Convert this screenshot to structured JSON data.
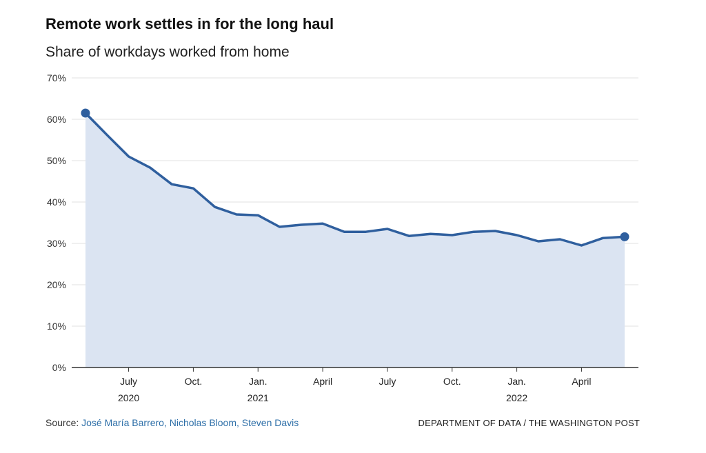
{
  "header": {
    "title": "Remote work settles in for the long haul",
    "subtitle": "Share of workdays worked from home"
  },
  "footer": {
    "source_label": "Source:",
    "source_authors": "José María Barrero, Nicholas Bloom, Steven Davis",
    "credit": "DEPARTMENT OF DATA / THE WASHINGTON POST"
  },
  "colors": {
    "line": "#2f5f9e",
    "fill": "#dbe4f2",
    "grid": "#e2e2e2",
    "axis": "#333333"
  },
  "chart_data": {
    "type": "area",
    "title": "Remote work settles in for the long haul",
    "subtitle": "Share of workdays worked from home",
    "x": [
      "2020-05",
      "2020-06",
      "2020-07",
      "2020-08",
      "2020-09",
      "2020-10",
      "2020-11",
      "2020-12",
      "2021-01",
      "2021-02",
      "2021-03",
      "2021-04",
      "2021-05",
      "2021-06",
      "2021-07",
      "2021-08",
      "2021-09",
      "2021-10",
      "2021-11",
      "2021-12",
      "2022-01",
      "2022-02",
      "2022-03",
      "2022-04",
      "2022-05",
      "2022-06"
    ],
    "series": [
      {
        "values": [
          61.5,
          56.2,
          51.0,
          48.3,
          44.3,
          43.3,
          38.8,
          37.0,
          36.8,
          34.0,
          34.5,
          34.8,
          32.8,
          32.8,
          33.5,
          31.8,
          32.3,
          32.0,
          32.8,
          33.0,
          32.0,
          30.5,
          31.0,
          29.5,
          31.3,
          31.6
        ]
      }
    ],
    "markers": [
      {
        "x": "2020-05",
        "value": 61.5
      },
      {
        "x": "2022-06",
        "value": 31.6
      }
    ],
    "ylim": [
      0,
      70
    ],
    "y_ticks": [
      0,
      10,
      20,
      30,
      40,
      50,
      60,
      70
    ],
    "y_tick_labels": [
      "0%",
      "10%",
      "20%",
      "30%",
      "40%",
      "50%",
      "60%",
      "70%"
    ],
    "x_ticks": [
      {
        "x": "2020-07",
        "label": "July",
        "year": "2020"
      },
      {
        "x": "2020-10",
        "label": "Oct.",
        "year": ""
      },
      {
        "x": "2021-01",
        "label": "Jan.",
        "year": "2021"
      },
      {
        "x": "2021-04",
        "label": "April",
        "year": ""
      },
      {
        "x": "2021-07",
        "label": "July",
        "year": ""
      },
      {
        "x": "2021-10",
        "label": "Oct.",
        "year": ""
      },
      {
        "x": "2022-01",
        "label": "Jan.",
        "year": "2022"
      },
      {
        "x": "2022-04",
        "label": "April",
        "year": ""
      }
    ],
    "grid": true,
    "legend": "none"
  }
}
